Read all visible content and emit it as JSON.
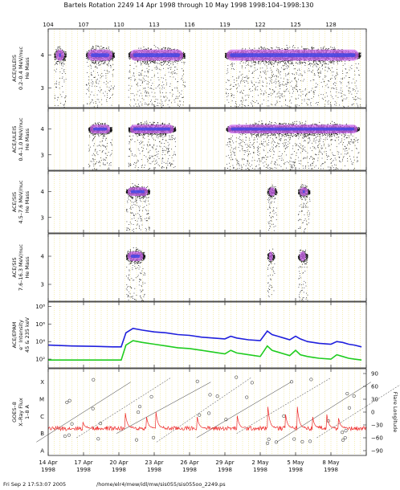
{
  "header": {
    "title": "Bartels Rotation 2249    14 Apr 1998 through 10 May 1998    1998:104–1998:130"
  },
  "footer": {
    "timestamp": "Fri Sep  2 17:53:07 2005",
    "path": "/home/elr4/mew/idl/mw/sis055/sis055oo_2249.ps"
  },
  "top_axis": {
    "doy_labels": [
      "104",
      "107",
      "110",
      "113",
      "116",
      "119",
      "122",
      "125",
      "128"
    ]
  },
  "bottom_axis": {
    "date_labels": [
      {
        "day": "14 Apr",
        "year": "1998"
      },
      {
        "day": "17 Apr",
        "year": "1998"
      },
      {
        "day": "20 Apr",
        "year": "1998"
      },
      {
        "day": "23 Apr",
        "year": "1998"
      },
      {
        "day": "26 Apr",
        "year": "1998"
      },
      {
        "day": "29 Apr",
        "year": "1998"
      },
      {
        "day": "2 May",
        "year": "1998"
      },
      {
        "day": "5 May",
        "year": "1998"
      },
      {
        "day": "8 May",
        "year": "1998"
      }
    ]
  },
  "colors": {
    "grid": "#e8d860",
    "scatter": "#111111",
    "density_purple": "#cc66ee",
    "density_blue": "#3b45e6",
    "epam_blue": "#1f1fdd",
    "epam_green": "#1fcc1f",
    "xray_red": "#ee2a2a"
  },
  "chart_data": [
    {
      "type": "scatter",
      "ylabel": [
        "ACE/ULEIS",
        "0.2–0.4 MeV/nuc",
        "He Mass"
      ],
      "y_ticks": [
        "4",
        "3"
      ],
      "ylim": [
        2.4,
        4.8
      ],
      "x": {
        "doy_start": 104,
        "doy_end": 131
      },
      "active_intervals_doy": [
        [
          104.5,
          105.5
        ],
        [
          107.2,
          109.6
        ],
        [
          110.8,
          115.6
        ],
        [
          119.0,
          130.5
        ]
      ],
      "center_value": 4.0
    },
    {
      "type": "scatter",
      "ylabel": [
        "ACE/ULEIS",
        "0.4–1.0 MeV/nuc",
        "He Mass"
      ],
      "y_ticks": [
        "4",
        "3"
      ],
      "ylim": [
        2.4,
        4.8
      ],
      "x": {
        "doy_start": 104,
        "doy_end": 131
      },
      "active_intervals_doy": [
        [
          107.4,
          109.4
        ],
        [
          110.8,
          114.8
        ],
        [
          119.1,
          130.4
        ]
      ],
      "center_value": 4.0
    },
    {
      "type": "scatter",
      "ylabel": [
        "ACE/SIS",
        "4.5–7.6 MeV/nuc",
        "He Mass"
      ],
      "y_ticks": [
        "4",
        "3"
      ],
      "ylim": [
        2.4,
        4.8
      ],
      "x": {
        "doy_start": 104,
        "doy_end": 131
      },
      "active_intervals_doy": [
        [
          110.6,
          112.6
        ],
        [
          122.6,
          123.4
        ],
        [
          125.2,
          126.2
        ]
      ],
      "center_value": 4.0
    },
    {
      "type": "scatter",
      "ylabel": [
        "ACE/SIS",
        "7.6–16.3 MeV/nuc",
        "He Mass"
      ],
      "y_ticks": [
        "4",
        "3"
      ],
      "ylim": [
        2.4,
        4.8
      ],
      "x": {
        "doy_start": 104,
        "doy_end": 131
      },
      "active_intervals_doy": [
        [
          110.6,
          112.2
        ],
        [
          122.6,
          123.2
        ],
        [
          125.2,
          126.0
        ]
      ],
      "center_value": 4.0
    },
    {
      "type": "line",
      "ylabel": [
        "ACE/EPAM",
        "e⁻ Intensity",
        "45 & 235 keV"
      ],
      "y_ticks": [
        "10⁸",
        "10⁶",
        "10⁴",
        "10²"
      ],
      "y_log_range": [
        1,
        8.5
      ],
      "series": [
        {
          "name": "45 keV",
          "doy": [
            104,
            106,
            108,
            109.5,
            110.2,
            110.6,
            111.2,
            112,
            113,
            114,
            115,
            116,
            117,
            118,
            119,
            119.5,
            120,
            121,
            122,
            122.6,
            123,
            123.5,
            124,
            124.5,
            125,
            125.4,
            126,
            126.5,
            127,
            128,
            128.5,
            129,
            129.5,
            130,
            130.6
          ],
          "log_values": [
            3.6,
            3.5,
            3.45,
            3.4,
            3.4,
            5.0,
            5.5,
            5.3,
            5.1,
            5.0,
            4.8,
            4.7,
            4.5,
            4.4,
            4.3,
            4.6,
            4.4,
            4.2,
            4.1,
            5.2,
            4.8,
            4.6,
            4.4,
            4.2,
            4.6,
            4.3,
            4.0,
            3.9,
            3.8,
            3.7,
            4.0,
            3.9,
            3.7,
            3.6,
            3.4
          ]
        },
        {
          "name": "235 keV",
          "doy": [
            104,
            106,
            108,
            109.5,
            110.2,
            110.6,
            111.2,
            112,
            113,
            114,
            115,
            116,
            117,
            118,
            119,
            119.5,
            120,
            121,
            122,
            122.6,
            123,
            123.5,
            124,
            124.5,
            125,
            125.4,
            126,
            126.5,
            127,
            128,
            128.5,
            129,
            129.5,
            130,
            130.6
          ],
          "log_values": [
            1.9,
            1.9,
            1.9,
            1.9,
            1.9,
            3.6,
            4.1,
            3.9,
            3.7,
            3.5,
            3.3,
            3.2,
            3.0,
            2.8,
            2.6,
            3.0,
            2.7,
            2.5,
            2.3,
            3.5,
            3.0,
            2.8,
            2.6,
            2.4,
            3.0,
            2.5,
            2.3,
            2.2,
            2.1,
            2.0,
            2.5,
            2.3,
            2.1,
            2.0,
            1.9
          ]
        }
      ]
    },
    {
      "type": "line",
      "ylabel": [
        "GOES–8",
        "X–Ray Flux",
        "1–8 A"
      ],
      "y_classes": [
        "X",
        "M",
        "C",
        "B",
        "A"
      ],
      "right_axis": {
        "label": "Flare Longitude",
        "ticks": [
          "90",
          "60",
          "30",
          "0",
          "−30",
          "−60",
          "−90"
        ]
      },
      "xray_background_class_value": 1.3,
      "xray_flares_doy": [
        {
          "doy": 106.9,
          "peak": 1.8
        },
        {
          "doy": 110.5,
          "peak": 2.5
        },
        {
          "doy": 112.3,
          "peak": 2.2
        },
        {
          "doy": 113.1,
          "peak": 2.6
        },
        {
          "doy": 116.6,
          "peak": 2.2
        },
        {
          "doy": 120.0,
          "peak": 2.3
        },
        {
          "doy": 122.6,
          "peak": 3.0
        },
        {
          "doy": 124.1,
          "peak": 2.4
        },
        {
          "doy": 125.1,
          "peak": 3.0
        },
        {
          "doy": 126.4,
          "peak": 2.2
        },
        {
          "doy": 127.6,
          "peak": 2.4
        },
        {
          "doy": 128.6,
          "peak": 2.1
        }
      ]
    }
  ]
}
